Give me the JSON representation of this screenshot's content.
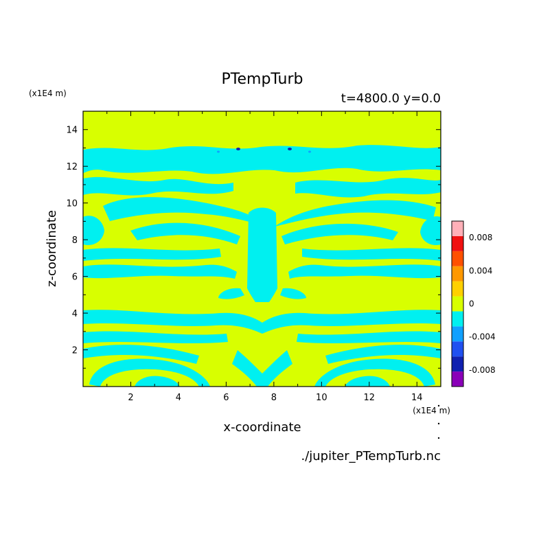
{
  "figure": {
    "title": "PTempTurb",
    "time_label": "t=4800.0 y=0.0",
    "file_label": "./jupiter_PTempTurb.nc"
  },
  "chart_data": {
    "type": "heatmap",
    "title": "PTempTurb",
    "subtitle": "t=4800.0 y=0.0",
    "xlabel": "x-coordinate",
    "ylabel": "z-coordinate",
    "x_units": "(x1E4 m)",
    "z_units": "(x1E4 m)",
    "xlim": [
      0,
      15
    ],
    "ylim": [
      0,
      15
    ],
    "x_ticks": [
      2,
      4,
      6,
      8,
      10,
      12,
      14
    ],
    "y_ticks": [
      2,
      4,
      6,
      8,
      10,
      12,
      14
    ],
    "x_tick_labels": [
      "2",
      "4",
      "6",
      "8",
      "10",
      "12",
      "14"
    ],
    "y_tick_labels": [
      "2",
      "4",
      "6",
      "8",
      "10",
      "12",
      "14"
    ],
    "colorbar": {
      "levels": [
        -0.01,
        -0.008,
        -0.006,
        -0.004,
        -0.002,
        0,
        0.002,
        0.004,
        0.006,
        0.008,
        0.01
      ],
      "colors": [
        "#8a00b8",
        "#1020b0",
        "#2050f0",
        "#10a0ff",
        "#00f0f0",
        "#d8ff00",
        "#ffd000",
        "#ff9800",
        "#ff5000",
        "#f01010",
        "#ffb0b8"
      ],
      "tick_values": [
        -0.008,
        -0.004,
        0,
        0.004,
        0.008
      ],
      "tick_labels": [
        "-0.008",
        "-0.004",
        "0",
        "0.004",
        "0.008"
      ]
    },
    "background_value": 0.0005,
    "features": [
      {
        "kind": "turbulent mixing layer",
        "z_range": [
          12.0,
          12.9
        ],
        "value": -0.001
      },
      {
        "kind": "horizontal band",
        "x_range": [
          0,
          15
        ],
        "z": 6.6,
        "value": -0.001
      },
      {
        "kind": "horizontal band",
        "x_range": [
          0,
          15
        ],
        "z": 4.0,
        "value": -0.001
      },
      {
        "kind": "horizontal band",
        "x_range": [
          0,
          15
        ],
        "z": 2.5,
        "value": -0.001
      },
      {
        "kind": "central column",
        "x": 7.5,
        "z_range": [
          0.8,
          10.0
        ],
        "value": -0.001
      },
      {
        "kind": "vortex arcs",
        "z_range": [
          8.5,
          11.0
        ],
        "value": -0.001
      },
      {
        "kind": "near-surface swirls",
        "z_range": [
          0.2,
          2.5
        ],
        "value": -0.001
      },
      {
        "kind": "isolated minima",
        "z": 12.8,
        "x": [
          5.7,
          6.5,
          8.6,
          9.4
        ],
        "value": -0.007
      }
    ]
  }
}
